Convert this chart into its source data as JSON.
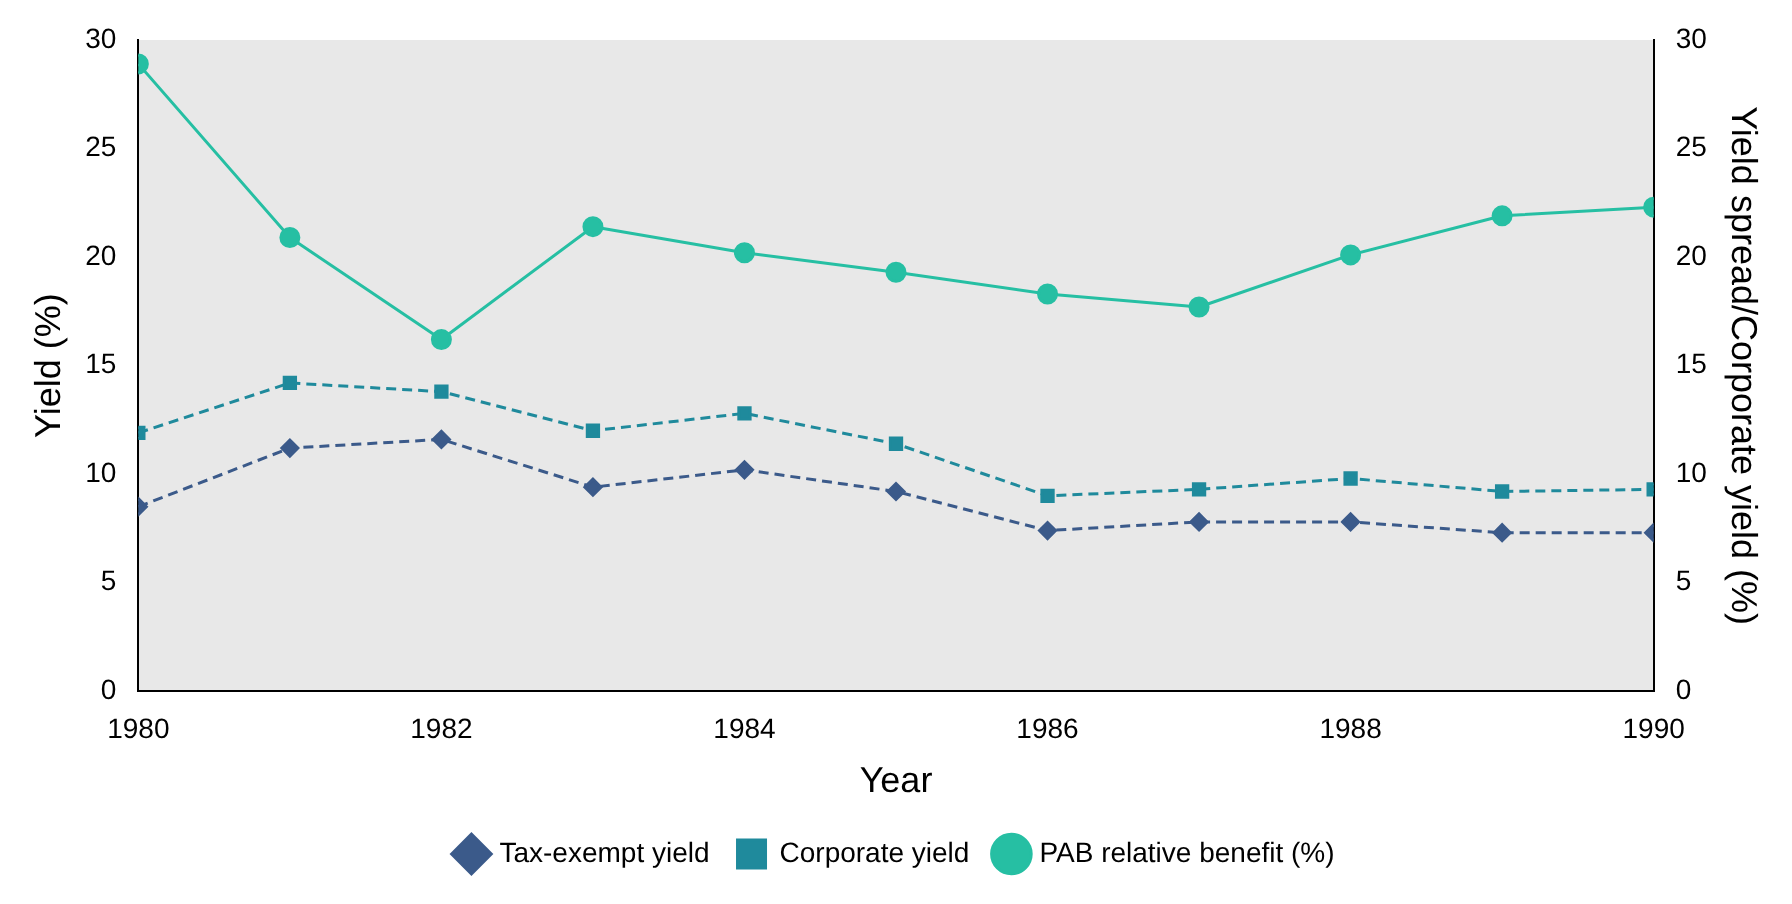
{
  "chart_data": {
    "type": "line",
    "xlabel": "Year",
    "ylabel": "Yield (%)",
    "y2label": "Yield spread/Corporate yield (%)",
    "x": [
      1980,
      1981,
      1982,
      1983,
      1984,
      1985,
      1986,
      1987,
      1988,
      1989,
      1990
    ],
    "xlim": [
      1980,
      1990
    ],
    "xticks": [
      1980,
      1982,
      1984,
      1986,
      1988,
      1990
    ],
    "ylim": [
      0,
      30
    ],
    "yticks": [
      0,
      5,
      10,
      15,
      20,
      25,
      30
    ],
    "y2lim": [
      0,
      30
    ],
    "y2ticks": [
      0,
      5,
      10,
      15,
      20,
      25,
      30
    ],
    "grid": false,
    "legend": "bottom",
    "series": [
      {
        "name": "Tax-exempt yield",
        "color": "#3b5a8a",
        "marker": "diamond",
        "line_style": "dashed",
        "values": [
          8.5,
          11.2,
          11.6,
          9.4,
          10.2,
          9.2,
          7.4,
          7.8,
          7.8,
          7.3,
          7.3
        ]
      },
      {
        "name": "Corporate yield",
        "color": "#1f8a9c",
        "marker": "square",
        "line_style": "dashed",
        "values": [
          11.9,
          14.2,
          13.8,
          12.0,
          12.8,
          11.4,
          9.0,
          9.3,
          9.8,
          9.2,
          9.3
        ]
      },
      {
        "name": "PAB relative benefit (%)",
        "color": "#26bfa3",
        "marker": "circle",
        "line_style": "solid",
        "values": [
          28.9,
          20.9,
          16.2,
          21.4,
          20.2,
          19.3,
          18.3,
          17.7,
          20.1,
          21.9,
          22.3
        ]
      }
    ]
  }
}
